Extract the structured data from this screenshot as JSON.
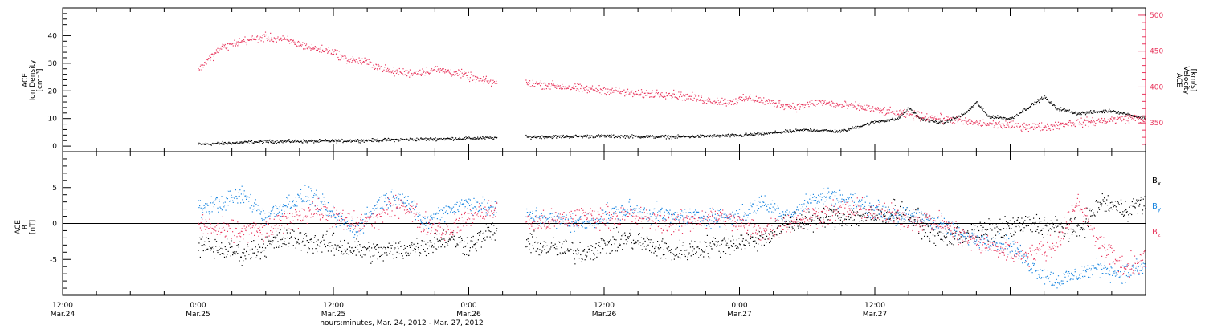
{
  "chart_data": [
    {
      "type": "scatter",
      "panel": "top",
      "ylabel_left": [
        "ACE",
        "Ion Density",
        "[cm⁻³]"
      ],
      "ylabel_right": [
        "ACE",
        "Velocity",
        "[km/s]"
      ],
      "ylim_left": [
        -2,
        50
      ],
      "ylim_right": [
        310,
        510
      ],
      "yticks_left": [
        0,
        10,
        20,
        30,
        40
      ],
      "yticks_right": [
        350,
        400,
        450,
        500
      ],
      "grid": false,
      "series": [
        {
          "axis": "left",
          "color": "#000000",
          "gaps": [
            [
              38.5,
              41.0
            ]
          ],
          "knots": [
            [
              12,
              0.8
            ],
            [
              18,
              1.8
            ],
            [
              24,
              2.0
            ],
            [
              30,
              2.5
            ],
            [
              36,
              3.0
            ],
            [
              42,
              3.5
            ],
            [
              48,
              3.8
            ],
            [
              54,
              3.5
            ],
            [
              60,
              4.0
            ],
            [
              66,
              6.0
            ],
            [
              69,
              5.5
            ],
            [
              72,
              9.0
            ],
            [
              74,
              10.0
            ],
            [
              75,
              14.0
            ],
            [
              76,
              10.0
            ],
            [
              78,
              8.5
            ],
            [
              80,
              12.0
            ],
            [
              81,
              16.0
            ],
            [
              82,
              11.0
            ],
            [
              84,
              10.0
            ],
            [
              87,
              18.0
            ],
            [
              88,
              14.0
            ],
            [
              90,
              12.0
            ],
            [
              93,
              13.0
            ],
            [
              95,
              11.0
            ],
            [
              96,
              10.0
            ]
          ],
          "noise": 0.5
        },
        {
          "axis": "right",
          "color": "#e8365d",
          "gaps": [
            [
              38.5,
              41.0
            ]
          ],
          "knots": [
            [
              12,
              425
            ],
            [
              13,
              440
            ],
            [
              14,
              455
            ],
            [
              16,
              465
            ],
            [
              18,
              470
            ],
            [
              20,
              465
            ],
            [
              22,
              455
            ],
            [
              24,
              450
            ],
            [
              25,
              440
            ],
            [
              27,
              435
            ],
            [
              29,
              422
            ],
            [
              31,
              420
            ],
            [
              33,
              425
            ],
            [
              35,
              420
            ],
            [
              37,
              410
            ],
            [
              38,
              407
            ],
            [
              42,
              405
            ],
            [
              46,
              398
            ],
            [
              49,
              395
            ],
            [
              51,
              390
            ],
            [
              53,
              392
            ],
            [
              55,
              388
            ],
            [
              57,
              382
            ],
            [
              59,
              380
            ],
            [
              61,
              385
            ],
            [
              63,
              378
            ],
            [
              65,
              373
            ],
            [
              67,
              380
            ],
            [
              69,
              375
            ],
            [
              71,
              372
            ],
            [
              73,
              366
            ],
            [
              75,
              362
            ],
            [
              77,
              358
            ],
            [
              79,
              355
            ],
            [
              81,
              350
            ],
            [
              83,
              348
            ],
            [
              85,
              346
            ],
            [
              87,
              345
            ],
            [
              89,
              350
            ],
            [
              91,
              352
            ],
            [
              93,
              355
            ],
            [
              95,
              358
            ],
            [
              96,
              355
            ]
          ],
          "noise": 5
        }
      ]
    },
    {
      "type": "scatter",
      "panel": "bottom",
      "ylabel_left": [
        "ACE",
        "B",
        "[nT]"
      ],
      "ylim": [
        -10,
        10
      ],
      "yticks": [
        -5,
        0,
        5
      ],
      "zero_line": true,
      "grid": false,
      "legend": [
        {
          "name": "Bx",
          "main": "B",
          "sub": "x",
          "color": "#000000"
        },
        {
          "name": "By",
          "main": "B",
          "sub": "y",
          "color": "#1a86e0"
        },
        {
          "name": "Bz",
          "main": "B",
          "sub": "z",
          "color": "#e8365d"
        }
      ],
      "legend_placement": "right",
      "series": [
        {
          "name": "Bx",
          "color": "#000000",
          "gaps": [
            [
              38.5,
              41.0
            ]
          ],
          "knots": [
            [
              12,
              -3
            ],
            [
              16,
              -4
            ],
            [
              20,
              -2
            ],
            [
              24,
              -3
            ],
            [
              28,
              -4
            ],
            [
              32,
              -3
            ],
            [
              34,
              -2
            ],
            [
              36,
              -3
            ],
            [
              38,
              -1
            ],
            [
              42,
              -3
            ],
            [
              46,
              -4
            ],
            [
              50,
              -2
            ],
            [
              54,
              -4
            ],
            [
              58,
              -3
            ],
            [
              62,
              -2
            ],
            [
              64,
              0
            ],
            [
              68,
              1
            ],
            [
              72,
              1
            ],
            [
              74,
              2
            ],
            [
              78,
              -2
            ],
            [
              82,
              -1
            ],
            [
              86,
              0
            ],
            [
              90,
              -1
            ],
            [
              92,
              3
            ],
            [
              94,
              2
            ],
            [
              96,
              3
            ]
          ],
          "noise": 1.3
        },
        {
          "name": "By",
          "color": "#1a86e0",
          "gaps": [
            [
              38.5,
              41.0
            ]
          ],
          "knots": [
            [
              12,
              2
            ],
            [
              14,
              3
            ],
            [
              16,
              4
            ],
            [
              18,
              1
            ],
            [
              20,
              3
            ],
            [
              22,
              4
            ],
            [
              24,
              1
            ],
            [
              26,
              -1
            ],
            [
              28,
              3
            ],
            [
              30,
              4
            ],
            [
              32,
              0
            ],
            [
              34,
              2
            ],
            [
              36,
              3
            ],
            [
              38,
              2
            ],
            [
              42,
              1
            ],
            [
              46,
              0
            ],
            [
              50,
              2
            ],
            [
              54,
              1
            ],
            [
              58,
              1
            ],
            [
              60,
              1
            ],
            [
              62,
              3
            ],
            [
              64,
              1
            ],
            [
              66,
              3
            ],
            [
              68,
              4
            ],
            [
              70,
              3
            ],
            [
              72,
              2
            ],
            [
              74,
              1
            ],
            [
              76,
              1
            ],
            [
              78,
              0
            ],
            [
              80,
              -2
            ],
            [
              82,
              -2
            ],
            [
              84,
              -3
            ],
            [
              86,
              -6
            ],
            [
              88,
              -8
            ],
            [
              90,
              -7
            ],
            [
              92,
              -6
            ],
            [
              94,
              -7
            ],
            [
              96,
              -6
            ]
          ],
          "noise": 1.1
        },
        {
          "name": "Bz",
          "color": "#e8365d",
          "gaps": [
            [
              38.5,
              41.0
            ]
          ],
          "knots": [
            [
              12,
              0
            ],
            [
              14,
              -1
            ],
            [
              18,
              -1
            ],
            [
              22,
              2
            ],
            [
              26,
              0
            ],
            [
              28,
              1
            ],
            [
              30,
              3
            ],
            [
              32,
              0
            ],
            [
              34,
              -1
            ],
            [
              36,
              1
            ],
            [
              38,
              2
            ],
            [
              42,
              0
            ],
            [
              46,
              1
            ],
            [
              50,
              1
            ],
            [
              54,
              0
            ],
            [
              58,
              1
            ],
            [
              62,
              -1
            ],
            [
              66,
              1
            ],
            [
              70,
              2
            ],
            [
              74,
              1
            ],
            [
              78,
              0
            ],
            [
              80,
              -2
            ],
            [
              82,
              -3
            ],
            [
              84,
              -4
            ],
            [
              86,
              -4
            ],
            [
              88,
              -3
            ],
            [
              90,
              3
            ],
            [
              92,
              -3
            ],
            [
              94,
              -6
            ],
            [
              96,
              -5
            ]
          ],
          "noise": 1.3
        }
      ]
    }
  ],
  "x_axis": {
    "range_hours": [
      0,
      96
    ],
    "ticks": [
      {
        "h": 0,
        "time": "12:00",
        "date": "Mar.24"
      },
      {
        "h": 12,
        "time": "0:00",
        "date": "Mar.25"
      },
      {
        "h": 24,
        "time": "12:00",
        "date": "Mar.25"
      },
      {
        "h": 36,
        "time": "0:00",
        "date": "Mar.26"
      },
      {
        "h": 48,
        "time": "12:00",
        "date": "Mar.26"
      },
      {
        "h": 60,
        "time": "0:00",
        "date": "Mar.27"
      },
      {
        "h": 72,
        "time": "12:00",
        "date": "Mar.27"
      }
    ],
    "xlabel": "hours:minutes, Mar. 24, 2012 - Mar. 27, 2012"
  }
}
